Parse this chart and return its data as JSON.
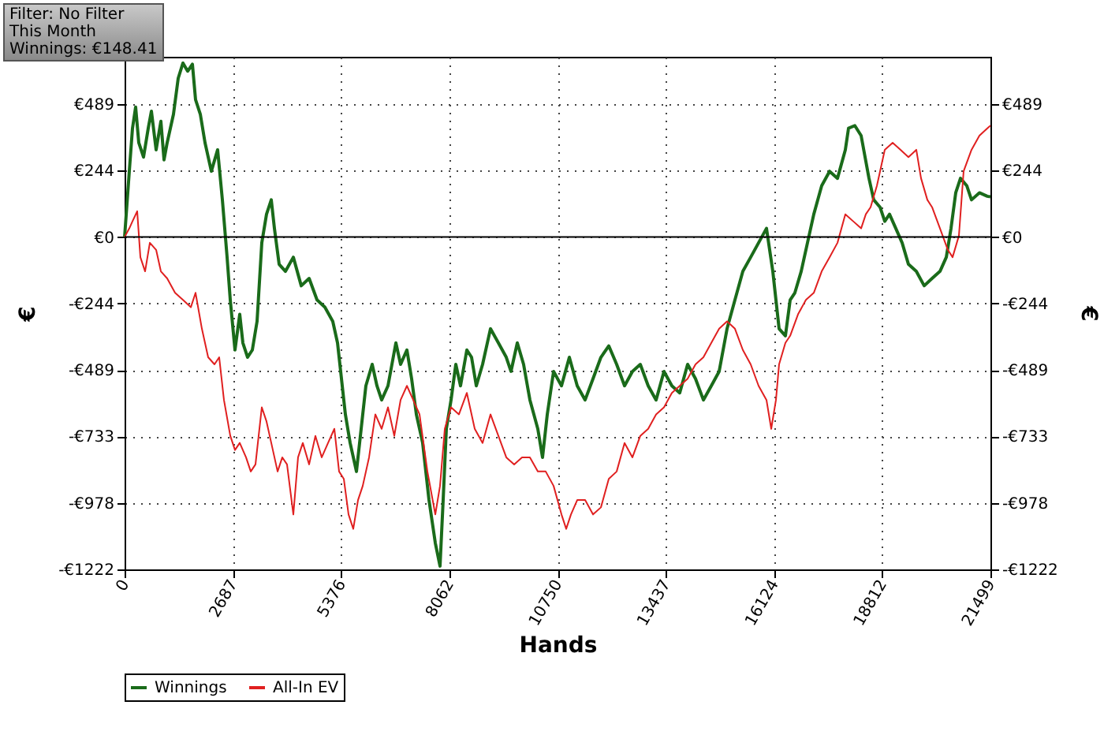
{
  "chart_data": {
    "type": "line",
    "xlabel": "Hands",
    "ylabel": "€",
    "y2label": "€",
    "annotations": [
      "Filter: No Filter",
      "This Month",
      "Winnings: €148.41"
    ],
    "xlim": [
      0,
      21499
    ],
    "xticks": [
      0,
      2687,
      5376,
      8062,
      10750,
      13437,
      16124,
      18812,
      21499
    ],
    "ylim": [
      -1222,
      663
    ],
    "yticks": [
      {
        "value": -1222,
        "label": "-€1222"
      },
      {
        "value": -978,
        "label": "-€978"
      },
      {
        "value": -733,
        "label": "-€733"
      },
      {
        "value": -489,
        "label": "-€489"
      },
      {
        "value": -244,
        "label": "-€244"
      },
      {
        "value": 0,
        "label": "€0"
      },
      {
        "value": 244,
        "label": "€244"
      },
      {
        "value": 489,
        "label": "€489"
      }
    ],
    "y2lim": [
      -1222,
      663
    ],
    "y2ticks": [
      {
        "value": -1222,
        "label": "-€1222"
      },
      {
        "value": -978,
        "label": "-€978"
      },
      {
        "value": -733,
        "label": "-€733"
      },
      {
        "value": -489,
        "label": "-€489"
      },
      {
        "value": -244,
        "label": "-€244"
      },
      {
        "value": 0,
        "label": "€0"
      },
      {
        "value": 244,
        "label": "€244"
      },
      {
        "value": 489,
        "label": "€489"
      }
    ],
    "grid": true,
    "legend": "bottom",
    "line_style": "solid",
    "marker": "none",
    "ref_lines": [
      {
        "axis": "y",
        "value": 0,
        "color": "#000000",
        "line_style": "solid"
      }
    ],
    "series": [
      {
        "name": "Winnings",
        "color": "#1a6b1a",
        "x": [
          0,
          117,
          196,
          274,
          352,
          470,
          587,
          666,
          783,
          901,
          979,
          1057,
          1214,
          1331,
          1449,
          1566,
          1684,
          1762,
          1880,
          1997,
          2154,
          2310,
          2428,
          2545,
          2624,
          2741,
          2859,
          2937,
          3054,
          3172,
          3289,
          3407,
          3524,
          3642,
          3720,
          3837,
          3994,
          4190,
          4386,
          4582,
          4778,
          4973,
          5169,
          5287,
          5365,
          5482,
          5600,
          5757,
          5874,
          5991,
          6148,
          6266,
          6383,
          6540,
          6736,
          6853,
          7010,
          7127,
          7245,
          7401,
          7558,
          7715,
          7832,
          7910,
          7989,
          8106,
          8224,
          8341,
          8498,
          8615,
          8733,
          8889,
          9085,
          9281,
          9477,
          9594,
          9751,
          9907,
          10064,
          10260,
          10377,
          10495,
          10652,
          10848,
          11043,
          11239,
          11435,
          11631,
          11827,
          12022,
          12218,
          12414,
          12610,
          12805,
          13001,
          13197,
          13393,
          13589,
          13784,
          13980,
          14176,
          14372,
          14568,
          14763,
          14959,
          15155,
          15351,
          15546,
          15742,
          15938,
          16095,
          16251,
          16408,
          16526,
          16643,
          16800,
          16956,
          17113,
          17309,
          17505,
          17701,
          17896,
          17975,
          18131,
          18288,
          18483,
          18601,
          18758,
          18875,
          18993,
          19149,
          19306,
          19463,
          19658,
          19854,
          20050,
          20246,
          20403,
          20520,
          20637,
          20755,
          20911,
          21029,
          21225,
          21421,
          21499
        ],
        "values": [
          0,
          242,
          400,
          478,
          347,
          294,
          400,
          463,
          321,
          426,
          284,
          347,
          452,
          584,
          640,
          610,
          636,
          505,
          452,
          347,
          242,
          321,
          137,
          -74,
          -231,
          -415,
          -284,
          -389,
          -442,
          -415,
          -310,
          -21,
          84,
          137,
          32,
          -100,
          -126,
          -74,
          -179,
          -152,
          -231,
          -258,
          -310,
          -389,
          -494,
          -652,
          -757,
          -862,
          -705,
          -547,
          -468,
          -547,
          -599,
          -547,
          -389,
          -468,
          -415,
          -521,
          -652,
          -757,
          -967,
          -1125,
          -1210,
          -967,
          -705,
          -599,
          -468,
          -547,
          -415,
          -442,
          -547,
          -468,
          -337,
          -389,
          -442,
          -494,
          -389,
          -468,
          -599,
          -705,
          -810,
          -652,
          -494,
          -547,
          -442,
          -547,
          -599,
          -521,
          -442,
          -400,
          -468,
          -547,
          -494,
          -468,
          -547,
          -599,
          -494,
          -547,
          -573,
          -468,
          -521,
          -599,
          -547,
          -494,
          -337,
          -231,
          -126,
          -74,
          -21,
          32,
          -126,
          -337,
          -363,
          -231,
          -205,
          -126,
          -21,
          84,
          189,
          242,
          216,
          321,
          400,
          410,
          373,
          216,
          137,
          110,
          58,
          84,
          32,
          -21,
          -100,
          -126,
          -179,
          -152,
          -126,
          -74,
          32,
          163,
          216,
          189,
          137,
          163,
          150,
          148
        ]
      },
      {
        "name": "All-In EV",
        "color": "#e02020",
        "x": [
          0,
          117,
          196,
          313,
          392,
          509,
          627,
          783,
          901,
          1057,
          1253,
          1449,
          1645,
          1762,
          1919,
          2075,
          2232,
          2349,
          2467,
          2624,
          2741,
          2859,
          3015,
          3133,
          3250,
          3407,
          3524,
          3642,
          3799,
          3916,
          4033,
          4190,
          4307,
          4425,
          4582,
          4738,
          4895,
          5052,
          5208,
          5326,
          5443,
          5561,
          5678,
          5796,
          5913,
          6070,
          6226,
          6383,
          6540,
          6697,
          6853,
          7010,
          7167,
          7323,
          7519,
          7715,
          7832,
          7950,
          8106,
          8302,
          8498,
          8694,
          8889,
          9085,
          9281,
          9477,
          9673,
          9868,
          10064,
          10260,
          10456,
          10652,
          10848,
          10965,
          11083,
          11239,
          11435,
          11631,
          11827,
          12022,
          12218,
          12414,
          12610,
          12805,
          13001,
          13197,
          13393,
          13589,
          13784,
          13980,
          14176,
          14372,
          14568,
          14763,
          14959,
          15155,
          15351,
          15546,
          15742,
          15938,
          16056,
          16173,
          16251,
          16408,
          16526,
          16721,
          16917,
          17113,
          17309,
          17505,
          17701,
          17896,
          18092,
          18288,
          18405,
          18523,
          18680,
          18875,
          19071,
          19267,
          19463,
          19658,
          19776,
          19932,
          20050,
          20246,
          20441,
          20559,
          20716,
          20833,
          21029,
          21225,
          21421,
          21499
        ],
        "values": [
          0,
          32,
          58,
          95,
          -74,
          -126,
          -21,
          -47,
          -126,
          -152,
          -205,
          -231,
          -258,
          -205,
          -337,
          -442,
          -468,
          -442,
          -599,
          -731,
          -783,
          -757,
          -810,
          -862,
          -836,
          -626,
          -678,
          -757,
          -862,
          -810,
          -836,
          -1020,
          -810,
          -757,
          -836,
          -731,
          -810,
          -757,
          -705,
          -862,
          -889,
          -1020,
          -1073,
          -967,
          -915,
          -810,
          -652,
          -705,
          -626,
          -731,
          -599,
          -547,
          -599,
          -652,
          -862,
          -1020,
          -915,
          -705,
          -626,
          -652,
          -573,
          -705,
          -757,
          -652,
          -731,
          -810,
          -836,
          -810,
          -810,
          -862,
          -862,
          -915,
          -1020,
          -1073,
          -1020,
          -967,
          -967,
          -1020,
          -994,
          -889,
          -862,
          -757,
          -810,
          -731,
          -705,
          -652,
          -626,
          -573,
          -547,
          -521,
          -468,
          -442,
          -389,
          -337,
          -310,
          -337,
          -415,
          -468,
          -547,
          -599,
          -705,
          -599,
          -468,
          -389,
          -363,
          -284,
          -231,
          -205,
          -126,
          -74,
          -21,
          84,
          58,
          32,
          84,
          110,
          189,
          321,
          347,
          321,
          294,
          321,
          216,
          137,
          110,
          32,
          -47,
          -74,
          5,
          242,
          321,
          373,
          400,
          410
        ]
      }
    ]
  }
}
